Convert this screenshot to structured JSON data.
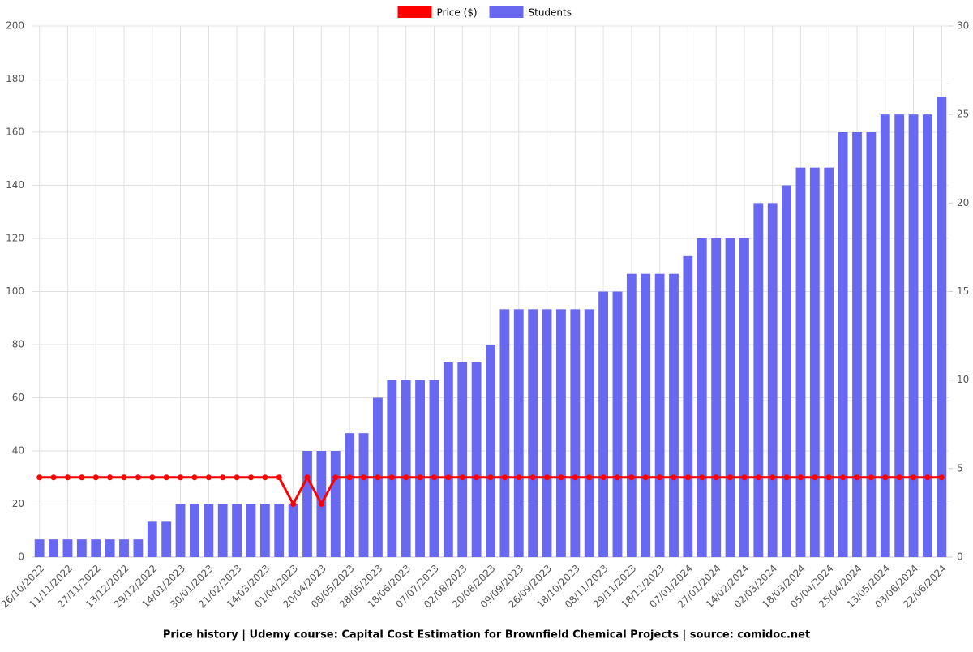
{
  "chart_data": {
    "type": "bar",
    "title": "Price history | Udemy course: Capital Cost Estimation for Brownfield Chemical Projects | source: comidoc.net",
    "categories": [
      "26/10/2022",
      null,
      "11/11/2022",
      null,
      "27/11/2022",
      null,
      "13/12/2022",
      null,
      "29/12/2022",
      null,
      "14/01/2023",
      null,
      "30/01/2023",
      null,
      "21/02/2023",
      null,
      "14/03/2023",
      null,
      "01/04/2023",
      null,
      "20/04/2023",
      null,
      "08/05/2023",
      null,
      "28/05/2023",
      null,
      "18/06/2023",
      null,
      "07/07/2023",
      null,
      "02/08/2023",
      null,
      "20/08/2023",
      null,
      "09/09/2023",
      null,
      "26/09/2023",
      null,
      "18/10/2023",
      null,
      "08/11/2023",
      null,
      "29/11/2023",
      null,
      "18/12/2023",
      null,
      "07/01/2024",
      null,
      "27/01/2024",
      null,
      "14/02/2024",
      null,
      "02/03/2024",
      null,
      "18/03/2024",
      null,
      "05/04/2024",
      null,
      "25/04/2024",
      null,
      "13/05/2024",
      null,
      "03/06/2024",
      null,
      "22/06/2024"
    ],
    "series": [
      {
        "name": "Price ($)",
        "type": "line",
        "color": "#ff0000",
        "axis": "y",
        "values": [
          29.99,
          29.99,
          29.99,
          29.99,
          29.99,
          29.99,
          29.99,
          29.99,
          29.99,
          29.99,
          29.99,
          29.99,
          29.99,
          29.99,
          29.99,
          29.99,
          29.99,
          29.99,
          19.99,
          29.99,
          19.99,
          29.99,
          29.99,
          29.99,
          29.99,
          29.99,
          29.99,
          29.99,
          29.99,
          29.99,
          29.99,
          29.99,
          29.99,
          29.99,
          29.99,
          29.99,
          29.99,
          29.99,
          29.99,
          29.99,
          29.99,
          29.99,
          29.99,
          29.99,
          29.99,
          29.99,
          29.99,
          29.99,
          29.99,
          29.99,
          29.99,
          29.99,
          29.99,
          29.99,
          29.99,
          29.99,
          29.99,
          29.99,
          29.99,
          29.99,
          29.99,
          29.99,
          29.99,
          29.99,
          29.99
        ]
      },
      {
        "name": "Students",
        "type": "bar",
        "color": "#6868f0",
        "axis": "y2",
        "values": [
          1,
          1,
          1,
          1,
          1,
          1,
          1,
          1,
          2,
          2,
          3,
          3,
          3,
          3,
          3,
          3,
          3,
          3,
          3,
          6,
          6,
          6,
          7,
          7,
          9,
          10,
          10,
          10,
          10,
          11,
          11,
          11,
          12,
          14,
          14,
          14,
          14,
          14,
          14,
          14,
          15,
          15,
          16,
          16,
          16,
          16,
          17,
          18,
          18,
          18,
          18,
          20,
          20,
          21,
          22,
          22,
          22,
          24,
          24,
          24,
          25,
          25,
          25,
          25,
          26
        ]
      }
    ],
    "ylim": [
      0,
      200
    ],
    "yticks": [
      0,
      20,
      40,
      60,
      80,
      100,
      120,
      140,
      160,
      180,
      200
    ],
    "y2lim": [
      0,
      30
    ],
    "y2ticks": [
      0,
      5,
      10,
      15,
      20,
      25,
      30
    ],
    "grid": true,
    "legend": "top"
  }
}
